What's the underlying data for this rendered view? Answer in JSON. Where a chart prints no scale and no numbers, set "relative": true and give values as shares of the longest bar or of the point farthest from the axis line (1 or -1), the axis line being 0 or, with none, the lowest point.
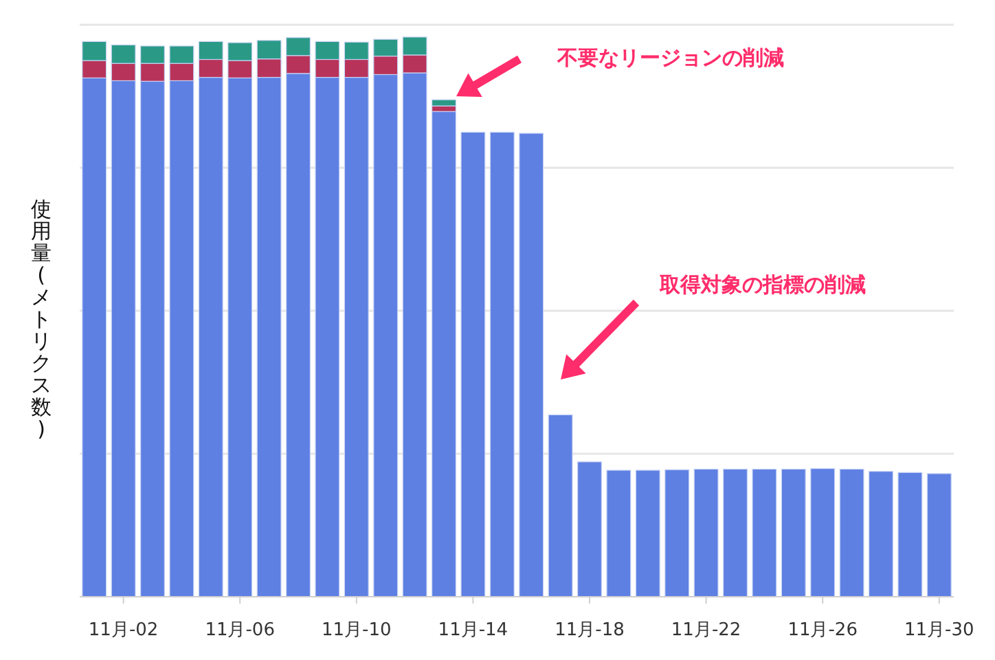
{
  "chart_data": {
    "type": "bar",
    "stacked": true,
    "relative": true,
    "grid": "y",
    "ylabel": "使用量(メトリクス数)",
    "categories": [
      null,
      "11月-02",
      null,
      null,
      null,
      "11月-06",
      null,
      null,
      null,
      "11月-10",
      null,
      null,
      null,
      "11月-14",
      null,
      null,
      null,
      "11月-18",
      null,
      null,
      null,
      "11月-22",
      null,
      null,
      null,
      "11月-26",
      null,
      null,
      null,
      "11月-30"
    ],
    "series": [
      {
        "color": "#5e80e3",
        "values": [
          0.927,
          0.922,
          0.921,
          0.922,
          0.928,
          0.927,
          0.928,
          0.935,
          0.928,
          0.928,
          0.933,
          0.936,
          0.867,
          0.83,
          0.83,
          0.828,
          0.325,
          0.241,
          0.226,
          0.226,
          0.227,
          0.228,
          0.228,
          0.228,
          0.228,
          0.229,
          0.228,
          0.224,
          0.222,
          0.22
        ]
      },
      {
        "color": "#b8335a",
        "values": [
          0.031,
          0.031,
          0.032,
          0.031,
          0.032,
          0.031,
          0.033,
          0.032,
          0.032,
          0.032,
          0.033,
          0.032,
          0.01,
          null,
          null,
          null,
          null,
          null,
          null,
          null,
          null,
          null,
          null,
          null,
          null,
          null,
          null,
          null,
          null,
          null
        ]
      },
      {
        "color": "#2a9a86",
        "values": [
          0.034,
          0.033,
          0.031,
          0.031,
          0.032,
          0.032,
          0.033,
          0.032,
          0.032,
          0.031,
          0.03,
          0.032,
          0.011,
          null,
          null,
          null,
          null,
          null,
          null,
          null,
          null,
          null,
          null,
          null,
          null,
          null,
          null,
          null,
          null,
          null
        ]
      }
    ],
    "annotations": [
      "不要なリージョンの削減",
      "取得対象の指標の削減"
    ]
  }
}
